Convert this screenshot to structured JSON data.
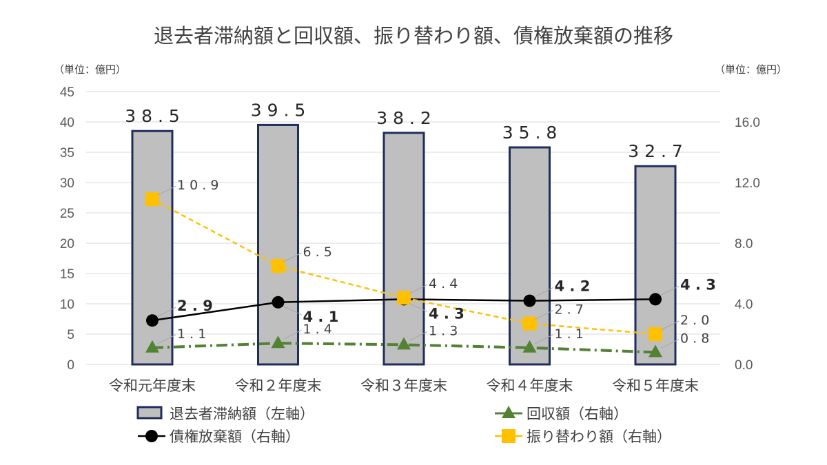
{
  "chart_data": {
    "type": "bar",
    "title": "退去者滞納額と回収額、振り替わり額、債権放棄額の推移",
    "left_unit": "（単位：億円）",
    "right_unit": "（単位：億円）",
    "categories": [
      "令和元年度末",
      "令和２年度末",
      "令和３年度末",
      "令和４年度末",
      "令和５年度末"
    ],
    "left_axis": {
      "min": 0,
      "max": 45,
      "step": 5,
      "ticks": [
        "0",
        "5",
        "10",
        "15",
        "20",
        "25",
        "30",
        "35",
        "40",
        "45"
      ]
    },
    "right_axis": {
      "min": 0,
      "max": 18,
      "ticks": [
        {
          "value": 0,
          "label": "0.0"
        },
        {
          "value": 4,
          "label": "4.0"
        },
        {
          "value": 8,
          "label": "8.0"
        },
        {
          "value": 12,
          "label": "12.0"
        },
        {
          "value": 16,
          "label": "16.0"
        }
      ]
    },
    "grid": true,
    "legend_position": "bottom",
    "series": [
      {
        "name": "退去者滞納額（左軸）",
        "type": "bar",
        "axis": "left",
        "values": [
          38.5,
          39.5,
          38.2,
          35.8,
          32.7
        ],
        "labels": [
          "38.5",
          "39.5",
          "38.2",
          "35.8",
          "32.7"
        ],
        "fill": "#bfbfbf",
        "stroke": "#1f2d5c"
      },
      {
        "name": "回収額（右軸）",
        "type": "line",
        "axis": "right",
        "marker": "triangle",
        "dash": "dashdot",
        "color": "#548235",
        "values": [
          1.1,
          1.4,
          1.3,
          1.1,
          0.8
        ],
        "labels": [
          "1.1",
          "1.4",
          "1.3",
          "1.1",
          "0.8"
        ]
      },
      {
        "name": "債権放棄額（右軸）",
        "type": "line",
        "axis": "right",
        "marker": "circle",
        "dash": "solid",
        "color": "#000000",
        "values": [
          2.9,
          4.1,
          4.3,
          4.2,
          4.3
        ],
        "labels": [
          "2.9",
          "4.1",
          "4.3",
          "4.2",
          "4.3"
        ]
      },
      {
        "name": "振り替わり額（右軸）",
        "type": "line",
        "axis": "right",
        "marker": "square",
        "dash": "dashed",
        "color": "#ffc000",
        "values": [
          10.9,
          6.5,
          4.4,
          2.7,
          2.0
        ],
        "labels": [
          "10.9",
          "6.5",
          "4.4",
          "2.7",
          "2.0"
        ]
      }
    ]
  }
}
